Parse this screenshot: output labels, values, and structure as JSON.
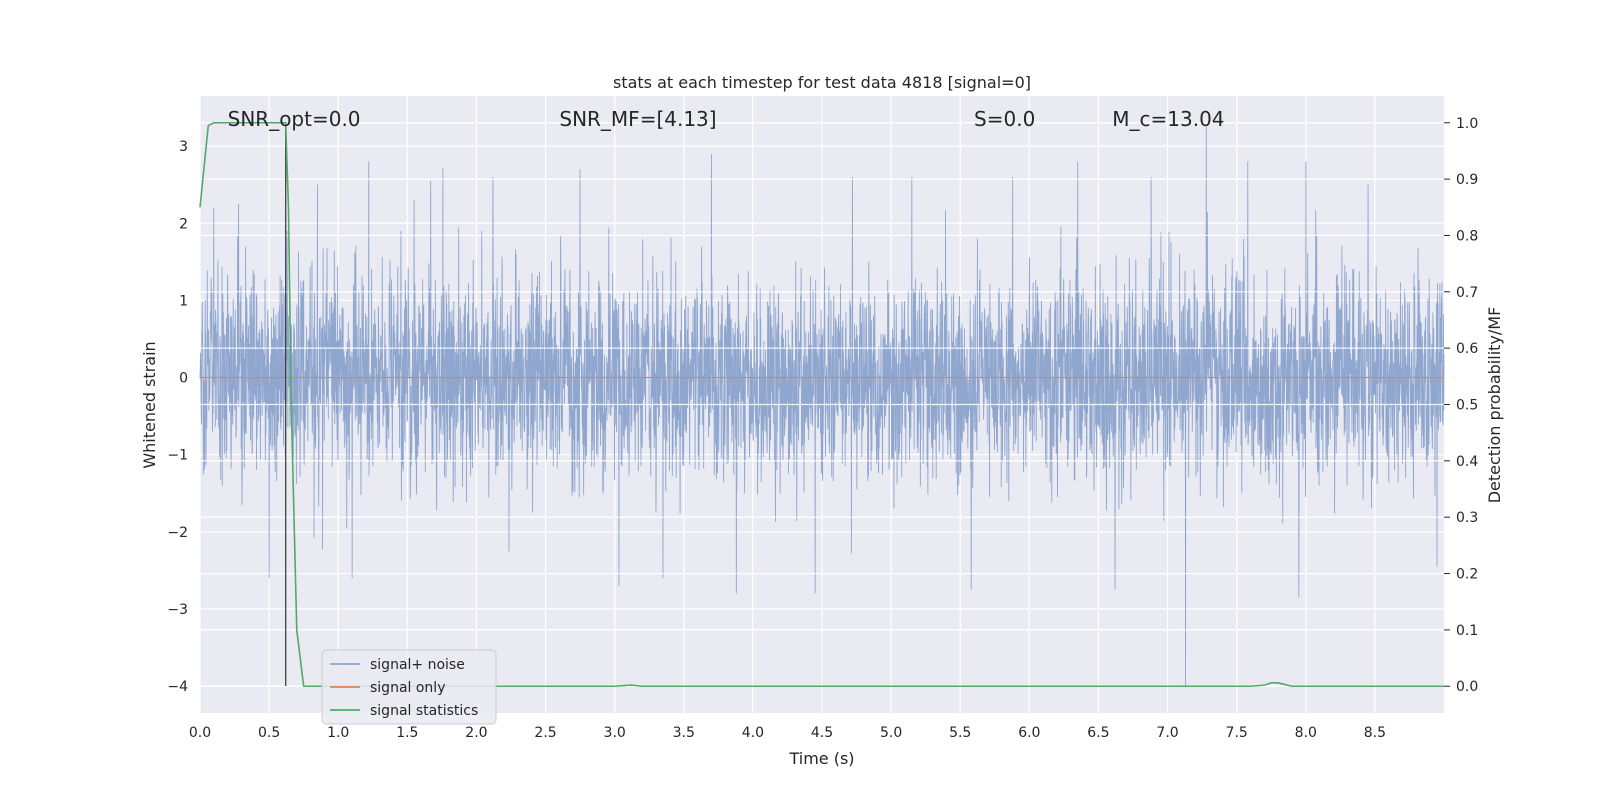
{
  "chart_data": {
    "type": "line",
    "title": "stats at each timestep for test data 4818 [signal=0]",
    "xlabel": "Time (s)",
    "ylabel": "Whitened strain",
    "y2label": "Detection probability/MF",
    "xlim": [
      0.0,
      9.0
    ],
    "ylim": [
      -4.35,
      3.65
    ],
    "y2lim": [
      -0.0475,
      1.0475
    ],
    "x_ticks": [
      0.0,
      0.5,
      1.0,
      1.5,
      2.0,
      2.5,
      3.0,
      3.5,
      4.0,
      4.5,
      5.0,
      5.5,
      6.0,
      6.5,
      7.0,
      7.5,
      8.0,
      8.5
    ],
    "x_tick_labels": [
      "0.0",
      "0.5",
      "1.0",
      "1.5",
      "2.0",
      "2.5",
      "3.0",
      "3.5",
      "4.0",
      "4.5",
      "5.0",
      "5.5",
      "6.0",
      "6.5",
      "7.0",
      "7.5",
      "8.0",
      "8.5"
    ],
    "y_ticks": [
      -4,
      -3,
      -2,
      -1,
      0,
      1,
      2,
      3
    ],
    "y_tick_labels": [
      "−4",
      "−3",
      "−2",
      "−1",
      "0",
      "1",
      "2",
      "3"
    ],
    "y2_ticks": [
      0.0,
      0.1,
      0.2,
      0.3,
      0.4,
      0.5,
      0.6,
      0.7,
      0.8,
      0.9,
      1.0
    ],
    "y2_tick_labels": [
      "0.0",
      "0.1",
      "0.2",
      "0.3",
      "0.4",
      "0.5",
      "0.6",
      "0.7",
      "0.8",
      "0.9",
      "1.0"
    ],
    "grid": true,
    "legend_position": "lower-left",
    "annotations": [
      {
        "text": "SNR_opt=0.0",
        "x": 0.2,
        "y": 3.35
      },
      {
        "text": "SNR_MF=[4.13]",
        "x": 2.6,
        "y": 3.35
      },
      {
        "text": "S=0.0",
        "x": 5.6,
        "y": 3.35
      },
      {
        "text": "M_c=13.04",
        "x": 6.6,
        "y": 3.35
      }
    ],
    "vline": {
      "x": 0.62,
      "y_from": -4.0,
      "y_to": 3.25
    },
    "series": [
      {
        "name": "signal+ noise",
        "axis": "left",
        "color": "#8fa6cf",
        "envelope": {
          "typical_peak": 1.7,
          "typical_trough": -1.7,
          "spikes": [
            {
              "x": 0.1,
              "y": 2.2
            },
            {
              "x": 0.28,
              "y": 2.25
            },
            {
              "x": 0.5,
              "y": -2.6
            },
            {
              "x": 0.63,
              "y": 1.9
            },
            {
              "x": 0.85,
              "y": 2.5
            },
            {
              "x": 1.1,
              "y": -2.6
            },
            {
              "x": 1.22,
              "y": 2.8
            },
            {
              "x": 1.55,
              "y": 2.3
            },
            {
              "x": 1.67,
              "y": 2.55
            },
            {
              "x": 2.12,
              "y": 2.6
            },
            {
              "x": 2.75,
              "y": 2.7
            },
            {
              "x": 3.03,
              "y": -2.7
            },
            {
              "x": 3.35,
              "y": -2.6
            },
            {
              "x": 3.7,
              "y": 2.9
            },
            {
              "x": 3.88,
              "y": -2.8
            },
            {
              "x": 4.45,
              "y": -2.8
            },
            {
              "x": 4.72,
              "y": 2.6
            },
            {
              "x": 5.15,
              "y": 2.6
            },
            {
              "x": 5.58,
              "y": -2.75
            },
            {
              "x": 5.88,
              "y": 2.6
            },
            {
              "x": 6.35,
              "y": 2.8
            },
            {
              "x": 6.62,
              "y": -2.75
            },
            {
              "x": 6.88,
              "y": 2.6
            },
            {
              "x": 7.13,
              "y": -4.0
            },
            {
              "x": 7.28,
              "y": 3.25
            },
            {
              "x": 7.58,
              "y": 2.8
            },
            {
              "x": 7.95,
              "y": -2.85
            },
            {
              "x": 8.0,
              "y": 2.8
            },
            {
              "x": 8.45,
              "y": 2.5
            },
            {
              "x": 8.95,
              "y": -2.45
            }
          ]
        }
      },
      {
        "name": "signal only",
        "axis": "left",
        "color": "#dd8452",
        "x": [
          0.0,
          9.0
        ],
        "y": [
          0.0,
          0.0
        ]
      },
      {
        "name": "signal statistics",
        "axis": "right",
        "color": "#55a868",
        "x": [
          0.0,
          0.06,
          0.1,
          0.15,
          0.2,
          0.3,
          0.4,
          0.5,
          0.55,
          0.6,
          0.62,
          0.64,
          0.66,
          0.7,
          0.75,
          0.8,
          1.0,
          3.0,
          3.12,
          3.2,
          4.0,
          7.6,
          7.7,
          7.75,
          7.8,
          7.85,
          7.9,
          8.0,
          9.0
        ],
        "y": [
          0.85,
          0.995,
          1.0,
          1.0,
          1.0,
          1.0,
          1.0,
          1.0,
          1.0,
          1.0,
          1.0,
          0.85,
          0.5,
          0.1,
          0.0,
          0.0,
          0.0,
          0.0,
          0.002,
          0.0,
          0.0,
          0.0,
          0.002,
          0.006,
          0.006,
          0.003,
          0.0,
          0.0,
          0.0
        ]
      }
    ]
  }
}
